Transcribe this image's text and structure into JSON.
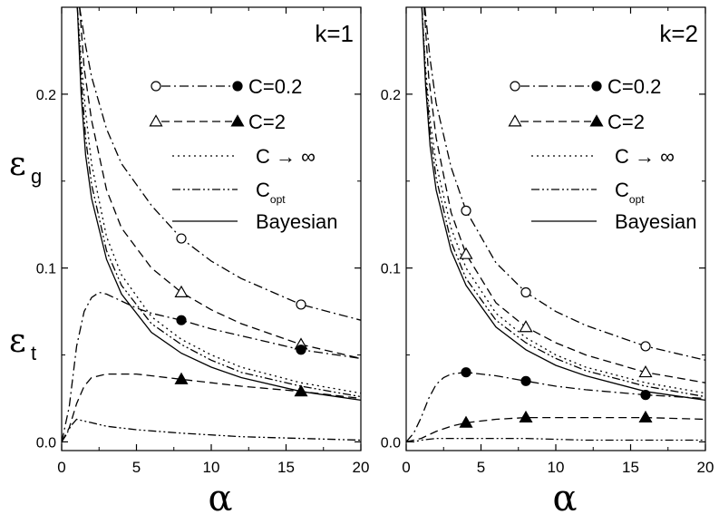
{
  "y_axis_symbol": {
    "generalization": {
      "main": "ε",
      "sub": "g"
    },
    "training": {
      "main": "ε",
      "sub": "t"
    }
  },
  "chart_data": [
    {
      "type": "line",
      "panel_label": "k=1",
      "xlabel": "α",
      "xlim": [
        0,
        20
      ],
      "ylim": [
        -0.005,
        0.25
      ],
      "x_ticks": [
        "0",
        "5",
        "10",
        "15",
        "20"
      ],
      "y_ticks": [
        "0.0",
        "0.1",
        "0.2"
      ],
      "grid": false,
      "legend_position": "top-right",
      "legend": [
        {
          "label": "C=0.2",
          "style": "dashdot",
          "markers": [
            "open-circle",
            "filled-circle"
          ]
        },
        {
          "label": "C=2",
          "style": "dashed",
          "markers": [
            "open-triangle",
            "filled-triangle"
          ]
        },
        {
          "label": "C → ∞",
          "style": "dotted",
          "markers": []
        },
        {
          "label": "C",
          "sub": "opt",
          "style": "dashdotdot",
          "markers": []
        },
        {
          "label": "Bayesian",
          "style": "solid",
          "markers": []
        }
      ],
      "series": [
        {
          "name": "C=0.2",
          "quantity": "generalization",
          "style": "dashdot",
          "marker": "open-circle",
          "marker_x": [
            8,
            16
          ],
          "x": [
            1.2,
            1.6,
            2,
            3,
            4,
            6,
            8,
            10,
            12,
            16,
            20
          ],
          "y": [
            0.25,
            0.228,
            0.21,
            0.18,
            0.16,
            0.136,
            0.117,
            0.104,
            0.094,
            0.079,
            0.07
          ]
        },
        {
          "name": "C=2",
          "quantity": "generalization",
          "style": "dashed",
          "marker": "open-triangle",
          "marker_x": [
            8,
            16
          ],
          "x": [
            1.2,
            1.5,
            2,
            3,
            4,
            6,
            8,
            10,
            12,
            16,
            20
          ],
          "y": [
            0.25,
            0.215,
            0.185,
            0.145,
            0.123,
            0.1,
            0.086,
            0.076,
            0.068,
            0.056,
            0.048
          ]
        },
        {
          "name": "C → ∞",
          "quantity": "generalization",
          "style": "dotted",
          "marker": "",
          "x": [
            1.05,
            1.3,
            1.6,
            2,
            3,
            4,
            6,
            8,
            10,
            12,
            16,
            20
          ],
          "y": [
            0.25,
            0.22,
            0.19,
            0.16,
            0.118,
            0.096,
            0.072,
            0.059,
            0.05,
            0.043,
            0.034,
            0.028
          ]
        },
        {
          "name": "Bayesian",
          "quantity": "generalization",
          "style": "solid",
          "marker": "",
          "x": [
            1.05,
            1.3,
            1.6,
            2,
            3,
            4,
            6,
            8,
            10,
            12,
            16,
            20
          ],
          "y": [
            0.25,
            0.2,
            0.165,
            0.14,
            0.105,
            0.085,
            0.063,
            0.051,
            0.043,
            0.037,
            0.029,
            0.024
          ]
        },
        {
          "name": "C_opt",
          "quantity": "generalization",
          "style": "dashdotdot",
          "marker": "",
          "x": [
            1.05,
            1.3,
            1.6,
            2,
            3,
            4,
            6,
            8,
            10,
            12,
            16,
            20
          ],
          "y": [
            0.25,
            0.21,
            0.175,
            0.148,
            0.11,
            0.09,
            0.068,
            0.056,
            0.047,
            0.04,
            0.032,
            0.026
          ]
        },
        {
          "name": "C=0.2",
          "quantity": "training",
          "style": "dashdot",
          "marker": "filled-circle",
          "marker_x": [
            8,
            16
          ],
          "x": [
            0,
            0.5,
            1,
            1.5,
            2,
            2.5,
            3,
            4,
            5,
            6,
            8,
            10,
            12,
            16,
            20
          ],
          "y": [
            0,
            0.02,
            0.055,
            0.075,
            0.083,
            0.086,
            0.085,
            0.081,
            0.077,
            0.074,
            0.07,
            0.065,
            0.061,
            0.053,
            0.048
          ]
        },
        {
          "name": "C=2",
          "quantity": "training",
          "style": "dashed",
          "marker": "filled-triangle",
          "marker_x": [
            8,
            16
          ],
          "x": [
            0,
            0.5,
            1,
            1.5,
            2,
            3,
            4,
            5,
            6,
            8,
            10,
            12,
            16,
            20
          ],
          "y": [
            0,
            0.008,
            0.022,
            0.032,
            0.037,
            0.039,
            0.039,
            0.039,
            0.038,
            0.036,
            0.034,
            0.032,
            0.029,
            0.025
          ]
        },
        {
          "name": "C_opt",
          "quantity": "training",
          "style": "dashdotdot",
          "marker": "",
          "x": [
            0,
            0.3,
            0.6,
            1,
            1.5,
            2,
            3,
            5,
            8,
            12,
            16,
            20
          ],
          "y": [
            0,
            0.004,
            0.009,
            0.013,
            0.012,
            0.011,
            0.009,
            0.007,
            0.005,
            0.003,
            0.002,
            0.001
          ]
        }
      ]
    },
    {
      "type": "line",
      "panel_label": "k=2",
      "xlabel": "α",
      "xlim": [
        0,
        20
      ],
      "ylim": [
        -0.005,
        0.25
      ],
      "x_ticks": [
        "0",
        "5",
        "10",
        "15",
        "20"
      ],
      "y_ticks": [
        "0.0",
        "0.1",
        "0.2"
      ],
      "grid": false,
      "legend_position": "top-right",
      "legend": [
        {
          "label": "C=0.2",
          "style": "dashdot",
          "markers": [
            "open-circle",
            "filled-circle"
          ]
        },
        {
          "label": "C=2",
          "style": "dashed",
          "markers": [
            "open-triangle",
            "filled-triangle"
          ]
        },
        {
          "label": "C → ∞",
          "style": "dotted",
          "markers": []
        },
        {
          "label": "C",
          "sub": "opt",
          "style": "dashdotdot",
          "markers": []
        },
        {
          "label": "Bayesian",
          "style": "solid",
          "markers": []
        }
      ],
      "series": [
        {
          "name": "C=0.2",
          "quantity": "generalization",
          "style": "dashdot",
          "marker": "open-circle",
          "marker_x": [
            4,
            8,
            16
          ],
          "x": [
            1.25,
            1.6,
            2,
            3,
            4,
            6,
            8,
            10,
            12,
            16,
            20
          ],
          "y": [
            0.25,
            0.22,
            0.195,
            0.158,
            0.133,
            0.103,
            0.086,
            0.075,
            0.067,
            0.055,
            0.047
          ]
        },
        {
          "name": "C=2",
          "quantity": "generalization",
          "style": "dashed",
          "marker": "open-triangle",
          "marker_x": [
            4,
            8,
            16
          ],
          "x": [
            1.2,
            1.5,
            2,
            3,
            4,
            6,
            8,
            10,
            12,
            16,
            20
          ],
          "y": [
            0.25,
            0.21,
            0.175,
            0.132,
            0.108,
            0.08,
            0.066,
            0.057,
            0.05,
            0.04,
            0.034
          ]
        },
        {
          "name": "C → ∞",
          "quantity": "generalization",
          "style": "dotted",
          "marker": "",
          "x": [
            1.05,
            1.3,
            1.6,
            2,
            3,
            4,
            6,
            8,
            10,
            12,
            16,
            20
          ],
          "y": [
            0.25,
            0.215,
            0.185,
            0.16,
            0.123,
            0.1,
            0.074,
            0.06,
            0.05,
            0.043,
            0.034,
            0.028
          ]
        },
        {
          "name": "Bayesian",
          "quantity": "generalization",
          "style": "solid",
          "marker": "",
          "x": [
            1.05,
            1.3,
            1.6,
            2,
            3,
            4,
            6,
            8,
            10,
            12,
            16,
            20
          ],
          "y": [
            0.25,
            0.205,
            0.17,
            0.145,
            0.11,
            0.09,
            0.066,
            0.053,
            0.044,
            0.038,
            0.029,
            0.024
          ]
        },
        {
          "name": "C_opt",
          "quantity": "generalization",
          "style": "dashdotdot",
          "marker": "",
          "x": [
            1.05,
            1.3,
            1.6,
            2,
            3,
            4,
            6,
            8,
            10,
            12,
            16,
            20
          ],
          "y": [
            0.25,
            0.21,
            0.178,
            0.152,
            0.115,
            0.094,
            0.07,
            0.057,
            0.048,
            0.041,
            0.032,
            0.026
          ]
        },
        {
          "name": "C=0.2",
          "quantity": "training",
          "style": "dashdot",
          "marker": "filled-circle",
          "marker_x": [
            4,
            8,
            16
          ],
          "x": [
            0,
            0.5,
            1,
            1.5,
            2,
            2.5,
            3,
            4,
            6,
            8,
            10,
            12,
            16,
            20
          ],
          "y": [
            0,
            0.005,
            0.014,
            0.025,
            0.033,
            0.037,
            0.039,
            0.04,
            0.038,
            0.035,
            0.032,
            0.03,
            0.027,
            0.025
          ]
        },
        {
          "name": "C=2",
          "quantity": "training",
          "style": "dashed",
          "marker": "filled-triangle",
          "marker_x": [
            4,
            8,
            16
          ],
          "x": [
            0,
            0.5,
            1,
            1.5,
            2,
            3,
            4,
            6,
            8,
            10,
            12,
            16,
            20
          ],
          "y": [
            0,
            0.001,
            0.002,
            0.004,
            0.006,
            0.009,
            0.011,
            0.013,
            0.014,
            0.014,
            0.014,
            0.014,
            0.013
          ]
        },
        {
          "name": "C_opt",
          "quantity": "training",
          "style": "dashdotdot",
          "marker": "",
          "x": [
            0,
            0.5,
            1,
            2,
            3,
            5,
            8,
            12,
            16,
            20
          ],
          "y": [
            0.0,
            0.0,
            0.001,
            0.002,
            0.002,
            0.002,
            0.002,
            0.001,
            0.001,
            0.001
          ]
        }
      ]
    }
  ]
}
